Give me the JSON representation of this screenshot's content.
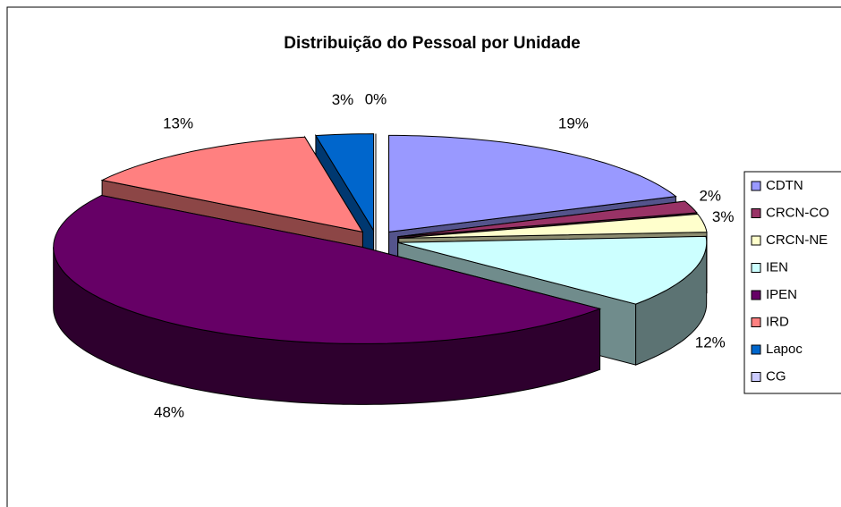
{
  "chart_data": {
    "type": "pie",
    "title": "Distribuição do Pessoal por Unidade",
    "categories": [
      "CDTN",
      "CRCN-CO",
      "CRCN-NE",
      "IEN",
      "IPEN",
      "IRD",
      "Lapoc",
      "CG"
    ],
    "values": [
      19,
      2,
      3,
      12,
      48,
      13,
      3,
      0
    ],
    "value_labels": [
      "19%",
      "2%",
      "3%",
      "12%",
      "48%",
      "13%",
      "3%",
      "0%"
    ],
    "colors": [
      "#9999ff",
      "#993366",
      "#ffffcc",
      "#ccffff",
      "#660066",
      "#ff8080",
      "#0066cc",
      "#ccccff"
    ],
    "legend": "right"
  }
}
